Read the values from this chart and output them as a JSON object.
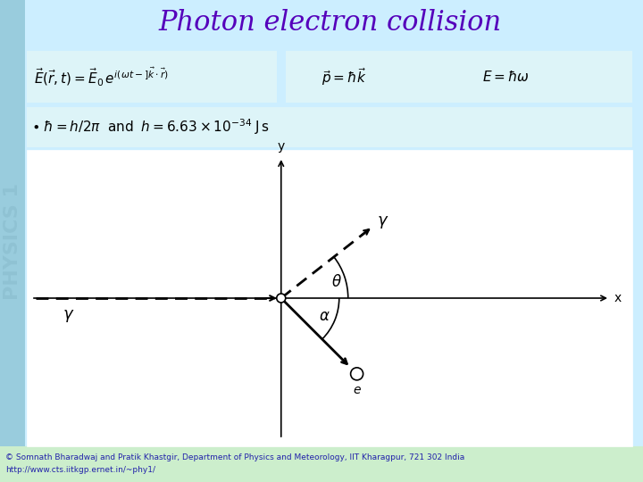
{
  "title": "Photon electron collision",
  "title_color": "#5500bb",
  "title_fontsize": 22,
  "bg_color": "#cceeff",
  "sidebar_color": "#99ccdd",
  "footer_color": "#cceecc",
  "footer_text1": "© Somnath Bharadwaj and Pratik Khastgir, Department of Physics and Meteorology, IIT Kharagpur, 721 302 India",
  "footer_text2": "http://www.cts.iitkgp.ernet.in/~phy1/",
  "sidebar_text": "PHYSICS 1",
  "eq_box1_color": "#ddf4f8",
  "eq_box2_color": "#ddf4f8",
  "eq_row2_color": "#ddf4f8",
  "diag_bg": "#ffffff",
  "theta_deg": 38,
  "alpha_deg": 45,
  "gamma_label": "$\\gamma$",
  "e_label": "e",
  "theta_label": "$\\theta$",
  "alpha_label": "$\\alpha$",
  "x_label": "x",
  "y_label": "y"
}
